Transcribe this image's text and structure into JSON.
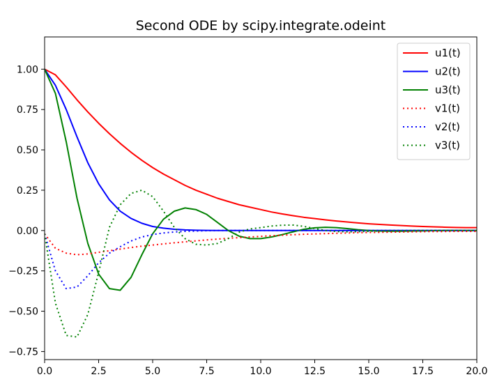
{
  "chart_data": {
    "type": "line",
    "title": "Second ODE by scipy.integrate.odeint",
    "xlabel": "",
    "ylabel": "",
    "xlim": [
      0,
      20
    ],
    "ylim": [
      -0.8,
      1.2
    ],
    "grid": false,
    "legend_position": "top-right",
    "x_ticks": [
      0.0,
      2.5,
      5.0,
      7.5,
      10.0,
      12.5,
      15.0,
      17.5,
      20.0
    ],
    "x_tick_labels": [
      "0.0",
      "2.5",
      "5.0",
      "7.5",
      "10.0",
      "12.5",
      "15.0",
      "17.5",
      "20.0"
    ],
    "y_ticks": [
      -0.75,
      -0.5,
      -0.25,
      0.0,
      0.25,
      0.5,
      0.75,
      1.0
    ],
    "y_tick_labels": [
      "−0.75",
      "−0.50",
      "−0.25",
      "0.00",
      "0.25",
      "0.50",
      "0.75",
      "1.00"
    ],
    "x": [
      0,
      0.5,
      1,
      1.5,
      2,
      2.5,
      3,
      3.5,
      4,
      4.5,
      5,
      5.5,
      6,
      6.5,
      7,
      7.5,
      8,
      8.5,
      9,
      9.5,
      10,
      10.5,
      11,
      11.5,
      12,
      12.5,
      13,
      13.5,
      14,
      14.5,
      15,
      15.5,
      16,
      16.5,
      17,
      17.5,
      18,
      18.5,
      19,
      19.5,
      20
    ],
    "series": [
      {
        "name": "u1(t)",
        "color": "#ff0000",
        "dash": "solid",
        "values": [
          1.0,
          0.965,
          0.89,
          0.81,
          0.735,
          0.665,
          0.6,
          0.54,
          0.485,
          0.435,
          0.39,
          0.35,
          0.315,
          0.28,
          0.25,
          0.225,
          0.2,
          0.18,
          0.16,
          0.145,
          0.13,
          0.115,
          0.103,
          0.092,
          0.082,
          0.074,
          0.066,
          0.059,
          0.053,
          0.047,
          0.042,
          0.038,
          0.034,
          0.031,
          0.028,
          0.025,
          0.023,
          0.021,
          0.019,
          0.018,
          0.018
        ]
      },
      {
        "name": "u2(t)",
        "color": "#0000ff",
        "dash": "solid",
        "values": [
          1.0,
          0.9,
          0.75,
          0.58,
          0.42,
          0.29,
          0.19,
          0.12,
          0.075,
          0.045,
          0.025,
          0.015,
          0.008,
          0.004,
          0.002,
          0.001,
          0,
          0,
          0,
          0,
          0,
          0,
          0,
          0,
          0,
          0,
          0,
          0,
          0,
          0,
          0,
          0,
          0,
          0,
          0,
          0,
          0,
          0,
          0,
          0,
          0
        ]
      },
      {
        "name": "u3(t)",
        "color": "#008000",
        "dash": "solid",
        "values": [
          1.0,
          0.85,
          0.55,
          0.2,
          -0.08,
          -0.27,
          -0.36,
          -0.37,
          -0.29,
          -0.15,
          -0.02,
          0.07,
          0.12,
          0.14,
          0.13,
          0.1,
          0.05,
          0.0,
          -0.035,
          -0.05,
          -0.05,
          -0.04,
          -0.025,
          -0.008,
          0.008,
          0.017,
          0.02,
          0.018,
          0.012,
          0.005,
          0.0,
          -0.003,
          -0.004,
          -0.004,
          -0.003,
          -0.002,
          -0.001,
          0,
          0,
          0,
          0
        ]
      },
      {
        "name": "v1(t)",
        "color": "#ff0000",
        "dash": "dotted",
        "values": [
          -0.02,
          -0.11,
          -0.14,
          -0.15,
          -0.145,
          -0.135,
          -0.125,
          -0.115,
          -0.105,
          -0.097,
          -0.09,
          -0.083,
          -0.076,
          -0.07,
          -0.064,
          -0.058,
          -0.053,
          -0.048,
          -0.044,
          -0.04,
          -0.036,
          -0.032,
          -0.029,
          -0.026,
          -0.023,
          -0.021,
          -0.019,
          -0.017,
          -0.015,
          -0.013,
          -0.012,
          -0.011,
          -0.01,
          -0.009,
          -0.008,
          -0.007,
          -0.006,
          -0.006,
          -0.005,
          -0.005,
          -0.005
        ]
      },
      {
        "name": "v2(t)",
        "color": "#0000ff",
        "dash": "dotted",
        "values": [
          -0.02,
          -0.25,
          -0.36,
          -0.35,
          -0.28,
          -0.2,
          -0.14,
          -0.1,
          -0.065,
          -0.04,
          -0.025,
          -0.015,
          -0.009,
          -0.005,
          -0.003,
          -0.001,
          0,
          0,
          0,
          0,
          0,
          0,
          0,
          0,
          0,
          0,
          0,
          0,
          0,
          0,
          0,
          0,
          0,
          0,
          0,
          0,
          0,
          0,
          0,
          0,
          0
        ]
      },
      {
        "name": "v3(t)",
        "color": "#008000",
        "dash": "dotted",
        "values": [
          -0.02,
          -0.45,
          -0.65,
          -0.66,
          -0.52,
          -0.26,
          0.02,
          0.16,
          0.23,
          0.25,
          0.21,
          0.12,
          0.02,
          -0.05,
          -0.085,
          -0.09,
          -0.08,
          -0.05,
          -0.01,
          0.01,
          0.018,
          0.028,
          0.033,
          0.034,
          0.026,
          0.012,
          0.0,
          -0.006,
          -0.008,
          -0.007,
          -0.005,
          -0.003,
          -0.002,
          -0.001,
          0,
          0,
          0,
          0,
          0,
          0,
          0
        ]
      }
    ]
  }
}
